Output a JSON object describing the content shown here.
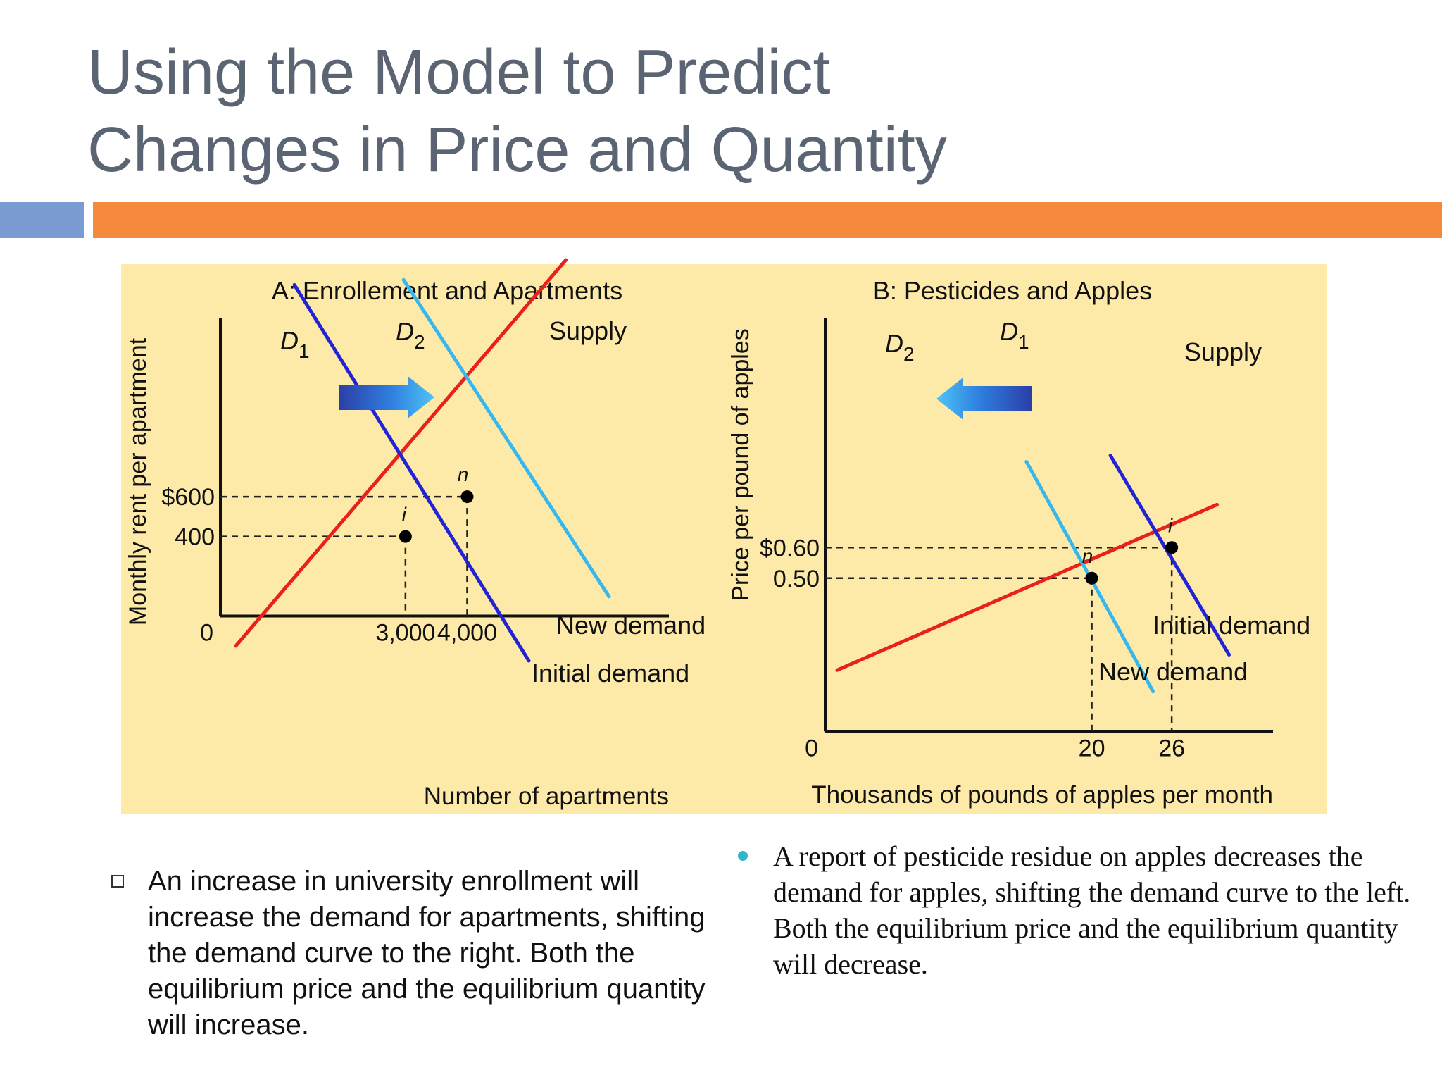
{
  "slide": {
    "title_line1": "Using the Model to Predict",
    "title_line2": "Changes in Price and Quantity",
    "colors": {
      "title": "#5b6472",
      "bar_left": "#7b9bd3",
      "bar_right": "#f58a3c",
      "panel_bg": "#fdeaa8"
    }
  },
  "chart_data": [
    {
      "type": "line",
      "title": "A: Enrollement and Apartments",
      "xlabel": "Number of apartments",
      "ylabel": "Monthly rent per apartment",
      "origin_label": "0",
      "x_ticks": [
        {
          "value": 3000,
          "label": "3,000"
        },
        {
          "value": 4000,
          "label": "4,000"
        }
      ],
      "y_ticks": [
        {
          "value": 600,
          "label": "$600"
        },
        {
          "value": 400,
          "label": "400"
        }
      ],
      "xlim": [
        0,
        7270
      ],
      "ylim": [
        -657,
        1500
      ],
      "series": [
        {
          "name": "Supply",
          "color": "#e8211c",
          "points": [
            [
              250,
              -150
            ],
            [
              5600,
              1790
            ]
          ]
        },
        {
          "name": "D1",
          "color": "#2323d6",
          "points": [
            [
              1200,
              1665
            ],
            [
              5000,
              -225
            ]
          ]
        },
        {
          "name": "D2",
          "color": "#36b8ef",
          "points": [
            [
              2970,
              1690
            ],
            [
              6300,
              98
            ]
          ]
        }
      ],
      "curve_labels": {
        "supply": "Supply",
        "d1_main": "D",
        "d1_sub": "1",
        "d2_main": "D",
        "d2_sub": "2",
        "new_demand": "New demand",
        "initial_demand": "Initial demand"
      },
      "equilibria": [
        {
          "label": "i",
          "x": 3000,
          "y": 400
        },
        {
          "label": "n",
          "x": 4000,
          "y": 600
        }
      ],
      "shift": "right"
    },
    {
      "type": "line",
      "title": "B: Pesticides and Apples",
      "xlabel": "Thousands of pounds of apples per month",
      "ylabel": "Price per pound of apples",
      "origin_label": "0",
      "x_ticks": [
        {
          "value": 20,
          "label": "20"
        },
        {
          "value": 26,
          "label": "26"
        }
      ],
      "y_ticks": [
        {
          "value": 0.6,
          "label": "$0.60"
        },
        {
          "value": 0.5,
          "label": "0.50"
        }
      ],
      "xlim": [
        0,
        33.6
      ],
      "ylim": [
        -0.05,
        1.35
      ],
      "series": [
        {
          "name": "Supply",
          "color": "#e8211c",
          "points": [
            [
              0.9,
              0.2
            ],
            [
              29.4,
              0.74
            ]
          ]
        },
        {
          "name": "D1",
          "color": "#2323d6",
          "points": [
            [
              21.4,
              0.9
            ],
            [
              30.3,
              0.25
            ]
          ]
        },
        {
          "name": "D2",
          "color": "#36b8ef",
          "points": [
            [
              15.1,
              0.88
            ],
            [
              24.6,
              0.13
            ]
          ]
        }
      ],
      "curve_labels": {
        "supply": "Supply",
        "d1_main": "D",
        "d1_sub": "1",
        "d2_main": "D",
        "d2_sub": "2",
        "new_demand": "New demand",
        "initial_demand": "Initial demand"
      },
      "equilibria": [
        {
          "label": "i",
          "x": 26,
          "y": 0.6
        },
        {
          "label": "n",
          "x": 20,
          "y": 0.5
        }
      ],
      "shift": "left"
    }
  ],
  "bullets": {
    "left": "An increase in university enrollment will increase the demand for apartments, shifting the demand curve to the right. Both the equilibrium price and the equilibrium quantity will increase.",
    "right": "A report of pesticide residue on apples decreases the demand for apples, shifting the demand curve to the left. Both the equilibrium price and the equilibrium quantity will decrease."
  }
}
